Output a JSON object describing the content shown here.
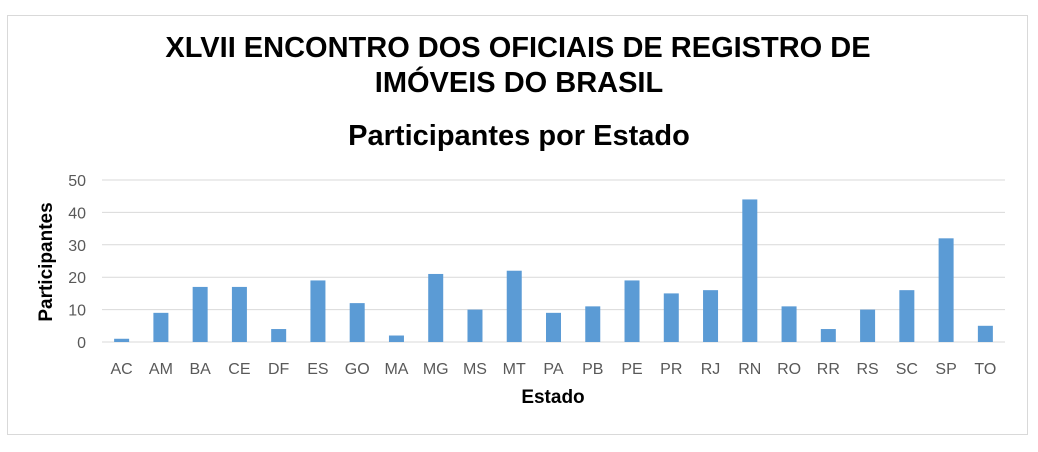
{
  "chart_data": {
    "type": "bar",
    "title": [
      "XLVII ENCONTRO DOS OFICIAIS DE REGISTRO DE",
      "IMÓVEIS DO BRASIL"
    ],
    "subtitle": "Participantes por Estado",
    "xlabel": "Estado",
    "ylabel": "Participantes",
    "ylim": [
      0,
      50
    ],
    "yticks": [
      0,
      10,
      20,
      30,
      40,
      50
    ],
    "grid": true,
    "legend": "none",
    "bar_color": "#5b9bd5",
    "categories": [
      "AC",
      "AM",
      "BA",
      "CE",
      "DF",
      "ES",
      "GO",
      "MA",
      "MG",
      "MS",
      "MT",
      "PA",
      "PB",
      "PE",
      "PR",
      "RJ",
      "RN",
      "RO",
      "RR",
      "RS",
      "SC",
      "SP",
      "TO"
    ],
    "values": [
      1,
      9,
      17,
      17,
      4,
      19,
      12,
      2,
      21,
      10,
      22,
      9,
      11,
      19,
      15,
      16,
      44,
      11,
      4,
      10,
      16,
      32,
      5
    ]
  }
}
